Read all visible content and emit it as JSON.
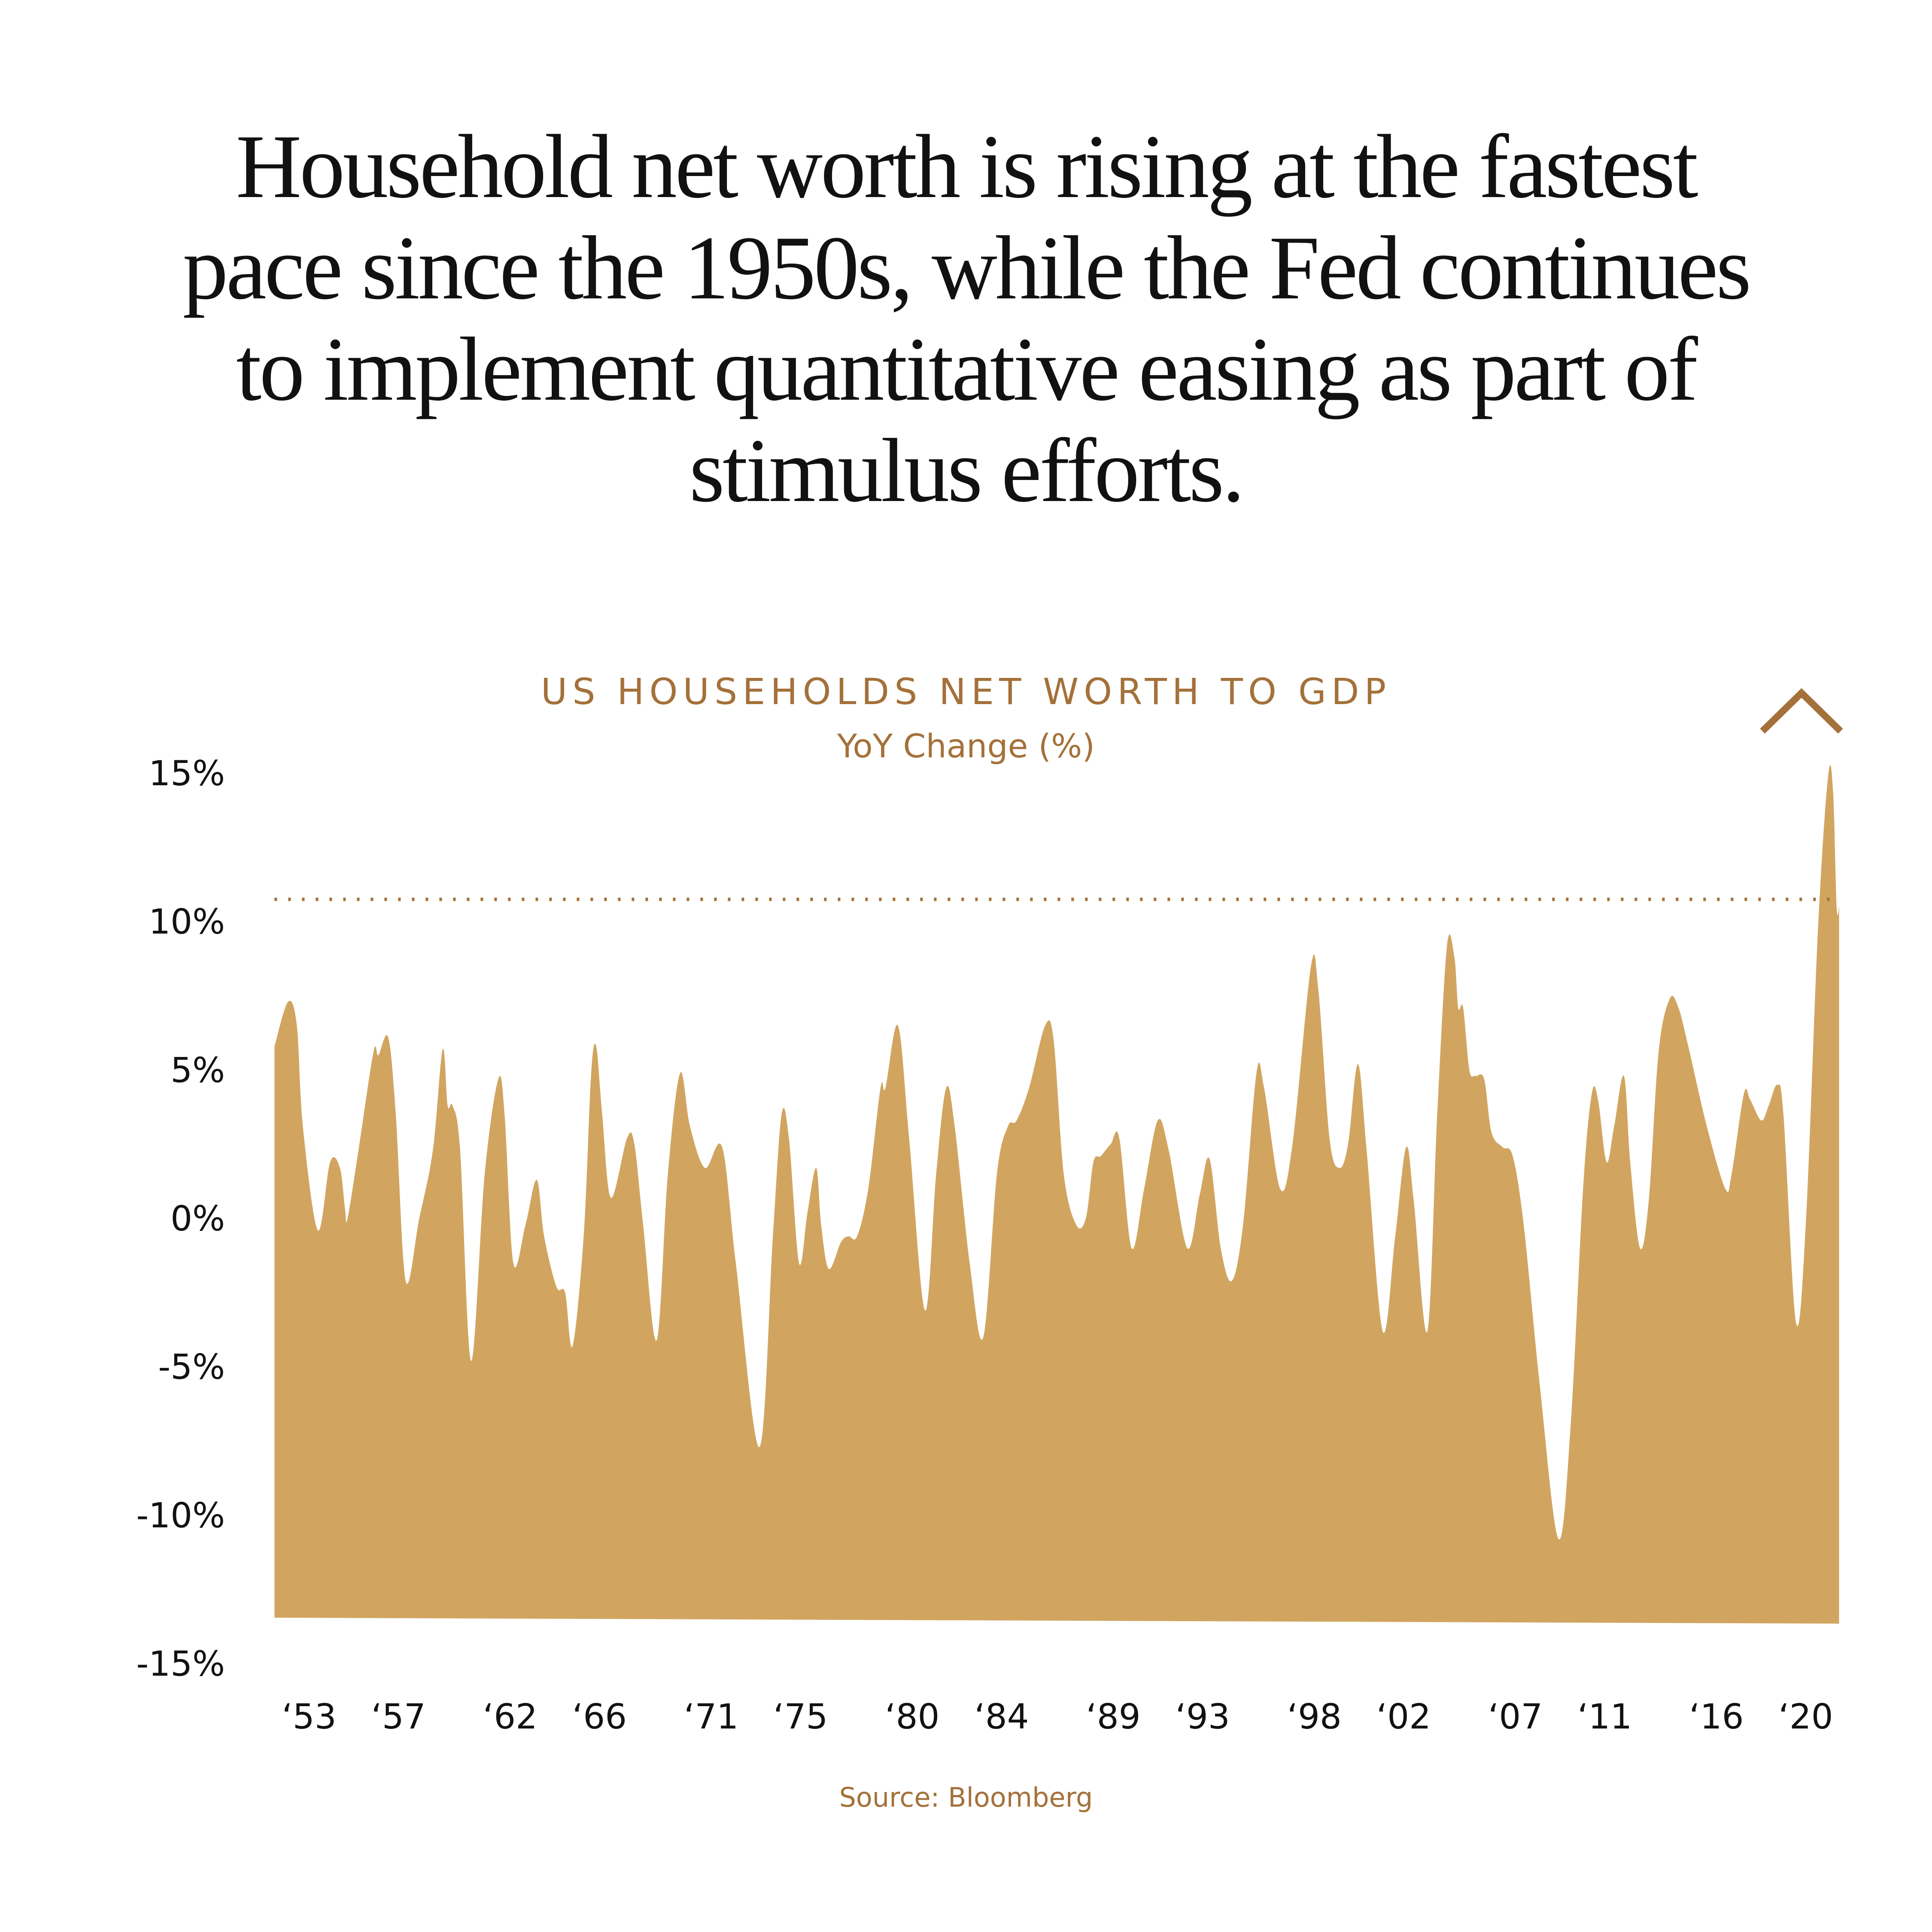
{
  "headline": {
    "lines": [
      "Household net worth is rising at the fastest",
      "pace since the 1950s, while the Fed continues",
      "to implement quantitative easing as part of",
      "stimulus efforts."
    ]
  },
  "chart_data": {
    "type": "area",
    "title": "US HOUSEHOLDS NET WORTH TO GDP",
    "subtitle": "YoY Change (%)",
    "source": "Source: Bloomberg",
    "xlabel": "",
    "ylabel": "",
    "xlim": [
      1951.45,
      2021.5
    ],
    "ylim": [
      -15,
      15
    ],
    "y_ticks": [
      15,
      10,
      5,
      0,
      -5,
      -10,
      -15
    ],
    "y_tick_labels": [
      "15%",
      "10%",
      "5%",
      "0%",
      "-5%",
      "-10%",
      "-15%"
    ],
    "x_ticks": [
      1953,
      1957,
      1962,
      1966,
      1971,
      1975,
      1980,
      1984,
      1989,
      1993,
      1998,
      2002,
      2007,
      2011,
      2016,
      2020
    ],
    "x_tick_labels": [
      "‘53",
      "‘57",
      "‘62",
      "‘66",
      "‘71",
      "‘75",
      "‘80",
      "‘84",
      "‘89",
      "‘93",
      "‘98",
      "‘02",
      "‘07",
      "‘11",
      "‘16",
      "‘20"
    ],
    "reference_line": {
      "value": 10.75,
      "style": "dotted"
    },
    "grid": false,
    "colors": {
      "fill": "#D1A560",
      "accent": "#A4713A",
      "text": "#111111"
    },
    "annotation_icon": "chevron-up-icon",
    "points": [
      [
        1951.45,
        5.8
      ],
      [
        1952.06,
        7.3
      ],
      [
        1952.45,
        6.5
      ],
      [
        1952.72,
        3.1
      ],
      [
        1953.39,
        -0.4
      ],
      [
        1953.94,
        1.9
      ],
      [
        1954.38,
        1.7
      ],
      [
        1954.61,
        0.3
      ],
      [
        1954.72,
        0
      ],
      [
        1955.21,
        2.3
      ],
      [
        1955.88,
        5.6
      ],
      [
        1956.1,
        5.5
      ],
      [
        1956.54,
        6.1
      ],
      [
        1956.88,
        3.5
      ],
      [
        1957.32,
        -2.1
      ],
      [
        1957.93,
        0
      ],
      [
        1958.54,
        2.3
      ],
      [
        1958.98,
        5.7
      ],
      [
        1959.2,
        3.8
      ],
      [
        1959.42,
        3.8
      ],
      [
        1959.76,
        2.3
      ],
      [
        1960.25,
        -4.8
      ],
      [
        1960.86,
        1.5
      ],
      [
        1961.47,
        4.7
      ],
      [
        1961.75,
        3.5
      ],
      [
        1962.14,
        -1.5
      ],
      [
        1962.69,
        -0.2
      ],
      [
        1963.19,
        1.3
      ],
      [
        1963.52,
        -0.6
      ],
      [
        1964.07,
        -2.3
      ],
      [
        1964.46,
        -2.5
      ],
      [
        1964.79,
        -4.3
      ],
      [
        1965.29,
        -0.6
      ],
      [
        1965.62,
        4.8
      ],
      [
        1965.85,
        5.8
      ],
      [
        1966.12,
        3.5
      ],
      [
        1966.51,
        0.7
      ],
      [
        1967.23,
        2.7
      ],
      [
        1967.56,
        2.5
      ],
      [
        1967.95,
        -0.2
      ],
      [
        1968.56,
        -4.1
      ],
      [
        1969.06,
        1.5
      ],
      [
        1969.61,
        4.9
      ],
      [
        1970.05,
        3.1
      ],
      [
        1970.72,
        1.7
      ],
      [
        1971.49,
        2.4
      ],
      [
        1972.1,
        -1.5
      ],
      [
        1973.16,
        -7.7
      ],
      [
        1973.76,
        -0.6
      ],
      [
        1974.15,
        3.5
      ],
      [
        1974.48,
        2.7
      ],
      [
        1974.93,
        -1.5
      ],
      [
        1975.31,
        0.2
      ],
      [
        1975.7,
        1.7
      ],
      [
        1975.92,
        -0.2
      ],
      [
        1976.26,
        -1.7
      ],
      [
        1976.81,
        -0.8
      ],
      [
        1977.14,
        -0.6
      ],
      [
        1977.53,
        -0.6
      ],
      [
        1978.03,
        1.0
      ],
      [
        1978.58,
        4.4
      ],
      [
        1978.8,
        4.4
      ],
      [
        1979.36,
        6.5
      ],
      [
        1979.86,
        2.7
      ],
      [
        1980.57,
        -3.1
      ],
      [
        1981.07,
        1.5
      ],
      [
        1981.52,
        4.4
      ],
      [
        1981.9,
        3.1
      ],
      [
        1982.57,
        -1.5
      ],
      [
        1983.18,
        -4.0
      ],
      [
        1983.79,
        1.5
      ],
      [
        1984.28,
        3.1
      ],
      [
        1984.67,
        3.3
      ],
      [
        1985.23,
        4.4
      ],
      [
        1985.95,
        6.5
      ],
      [
        1986.33,
        6.0
      ],
      [
        1986.78,
        1.5
      ],
      [
        1987.33,
        -0.2
      ],
      [
        1987.77,
        0
      ],
      [
        1988.11,
        1.9
      ],
      [
        1988.44,
        2.1
      ],
      [
        1988.88,
        2.5
      ],
      [
        1989.27,
        2.7
      ],
      [
        1989.82,
        -1.0
      ],
      [
        1990.38,
        1.0
      ],
      [
        1990.99,
        3.3
      ],
      [
        1991.48,
        2.3
      ],
      [
        1992.31,
        -1.0
      ],
      [
        1992.87,
        0.8
      ],
      [
        1993.31,
        2.0
      ],
      [
        1993.81,
        -1.0
      ],
      [
        1994.31,
        -2.1
      ],
      [
        1994.81,
        -0.2
      ],
      [
        1995.41,
        4.9
      ],
      [
        1995.75,
        4.4
      ],
      [
        1996.47,
        1.0
      ],
      [
        1997.02,
        2.5
      ],
      [
        1997.85,
        8.5
      ],
      [
        1998.18,
        7.7
      ],
      [
        1998.68,
        2.7
      ],
      [
        1999.12,
        1.7
      ],
      [
        1999.51,
        2.5
      ],
      [
        1999.95,
        5.2
      ],
      [
        2000.34,
        2.3
      ],
      [
        2001.06,
        -3.8
      ],
      [
        2001.62,
        -0.6
      ],
      [
        2002.11,
        2.4
      ],
      [
        2002.45,
        0.6
      ],
      [
        2003.06,
        -3.8
      ],
      [
        2003.5,
        3.5
      ],
      [
        2003.94,
        9.2
      ],
      [
        2004.27,
        8.8
      ],
      [
        2004.44,
        7.1
      ],
      [
        2004.66,
        7.1
      ],
      [
        2004.94,
        5.0
      ],
      [
        2005.21,
        4.8
      ],
      [
        2005.6,
        4.7
      ],
      [
        2005.93,
        2.9
      ],
      [
        2006.43,
        2.4
      ],
      [
        2006.88,
        2.1
      ],
      [
        2007.37,
        -0.2
      ],
      [
        2008.09,
        -5.6
      ],
      [
        2008.93,
        -10.8
      ],
      [
        2009.48,
        -6.9
      ],
      [
        2010.03,
        1.0
      ],
      [
        2010.42,
        4.2
      ],
      [
        2010.7,
        4.0
      ],
      [
        2011.08,
        1.9
      ],
      [
        2011.42,
        3.1
      ],
      [
        2011.86,
        4.8
      ],
      [
        2012.14,
        1.9
      ],
      [
        2012.58,
        -1.0
      ],
      [
        2012.97,
        0.6
      ],
      [
        2013.41,
        5.6
      ],
      [
        2013.91,
        7.4
      ],
      [
        2014.3,
        7.1
      ],
      [
        2014.74,
        5.8
      ],
      [
        2015.57,
        3.1
      ],
      [
        2016.4,
        1.0
      ],
      [
        2016.68,
        1.5
      ],
      [
        2017.23,
        4.2
      ],
      [
        2017.51,
        4.0
      ],
      [
        2018.01,
        3.3
      ],
      [
        2018.34,
        3.8
      ],
      [
        2018.72,
        4.5
      ],
      [
        2019.0,
        3.5
      ],
      [
        2019.56,
        -3.5
      ],
      [
        2020.0,
        -0.2
      ],
      [
        2020.55,
        9.8
      ],
      [
        2021.0,
        14.9
      ],
      [
        2021.22,
        14.4
      ],
      [
        2021.38,
        10.5
      ],
      [
        2021.49,
        10.5
      ]
    ]
  }
}
